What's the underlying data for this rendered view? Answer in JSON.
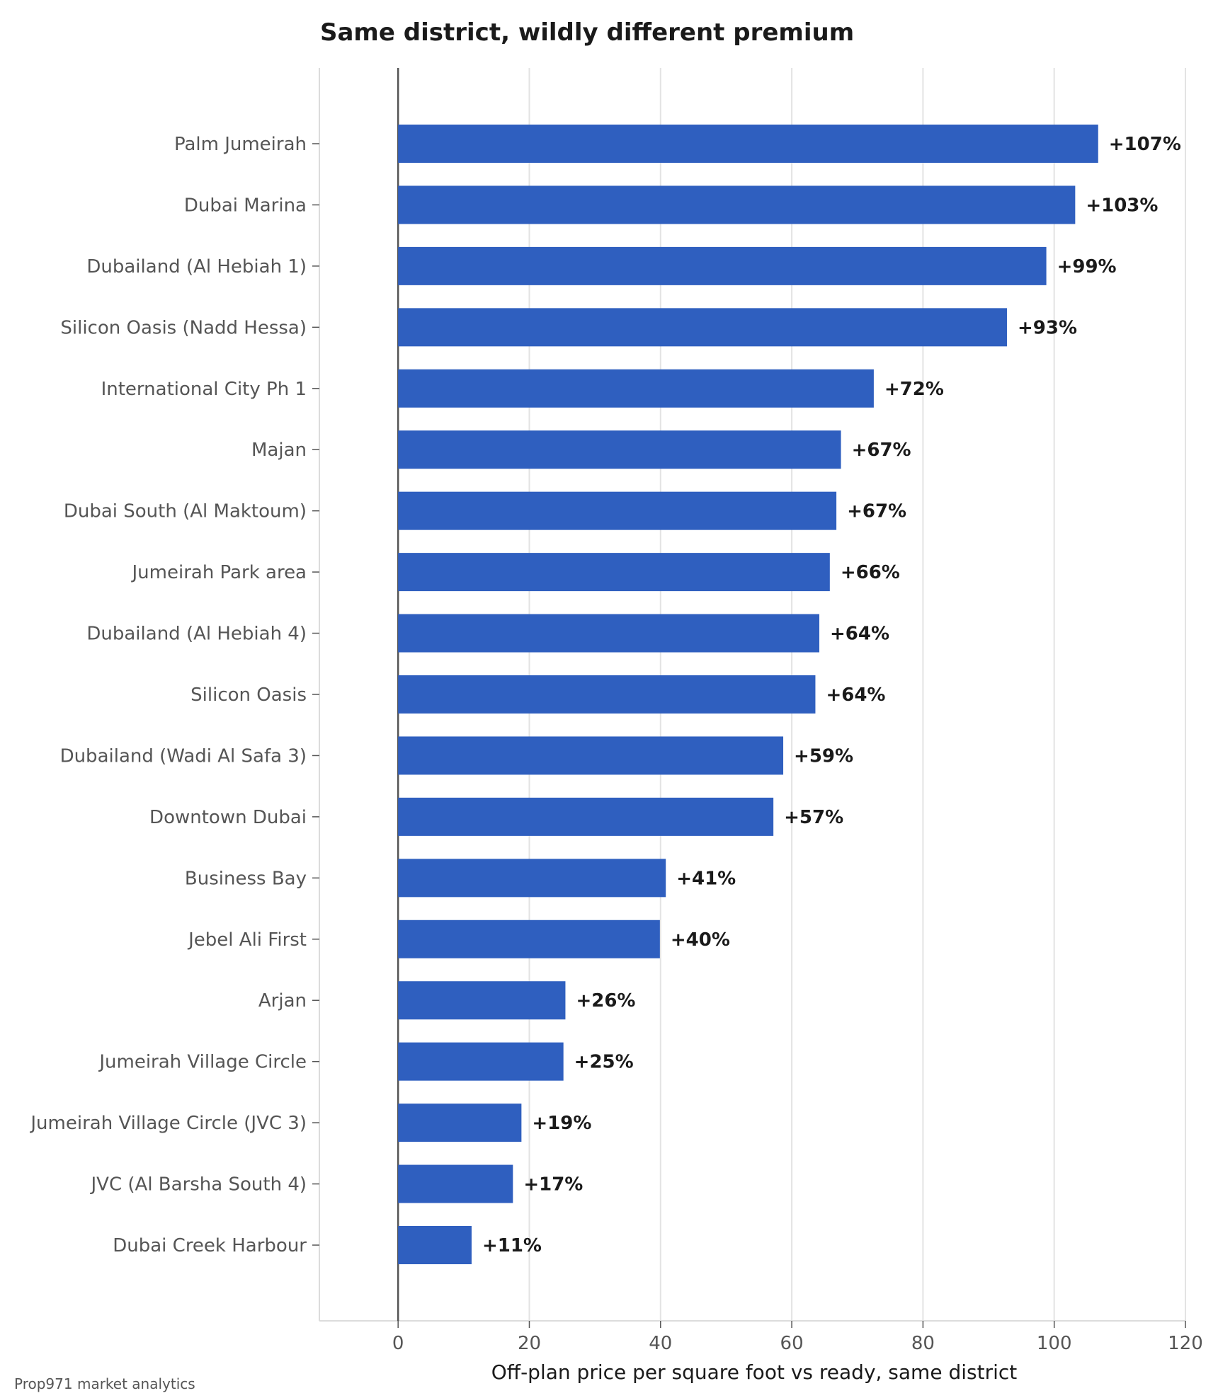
{
  "source": "Prop971 market analytics",
  "chart_data": {
    "type": "bar",
    "orientation": "horizontal",
    "title": "Same district, wildly different premium",
    "xlabel": "Off-plan price per square foot vs ready, same district",
    "ylabel": "",
    "xlim": [
      -12,
      120
    ],
    "xticks": [
      0,
      20,
      40,
      60,
      80,
      100,
      120
    ],
    "grid": true,
    "bar_color": "#2f5fbf",
    "categories": [
      "Palm Jumeirah",
      "Dubai Marina",
      "Dubailand (Al Hebiah 1)",
      "Silicon Oasis (Nadd Hessa)",
      "International City Ph 1",
      "Majan",
      "Dubai South (Al Maktoum)",
      "Jumeirah Park area",
      "Dubailand (Al Hebiah 4)",
      "Silicon Oasis",
      "Dubailand (Wadi Al Safa 3)",
      "Downtown Dubai",
      "Business Bay",
      "Jebel Ali First",
      "Arjan",
      "Jumeirah Village Circle",
      "Jumeirah Village Circle (JVC 3)",
      "JVC (Al Barsha South 4)",
      "Dubai Creek Harbour"
    ],
    "values": [
      106.7,
      103.2,
      98.8,
      92.8,
      72.5,
      67.5,
      66.8,
      65.8,
      64.2,
      63.6,
      58.7,
      57.2,
      40.8,
      39.9,
      25.5,
      25.2,
      18.8,
      17.5,
      11.2
    ],
    "labels": [
      "+107%",
      "+103%",
      "+99%",
      "+93%",
      "+72%",
      "+67%",
      "+67%",
      "+66%",
      "+64%",
      "+64%",
      "+59%",
      "+57%",
      "+41%",
      "+40%",
      "+26%",
      "+25%",
      "+19%",
      "+17%",
      "+11%"
    ]
  }
}
